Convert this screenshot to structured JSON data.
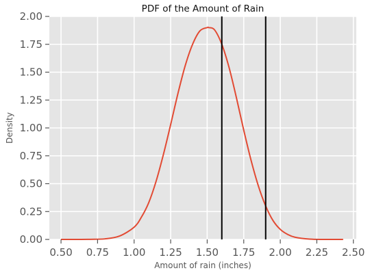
{
  "chart_data": {
    "type": "line",
    "title": "PDF of the Amount of Rain",
    "xlabel": "Amount of rain (inches)",
    "ylabel": "Density",
    "xlim": [
      0.42,
      2.52
    ],
    "ylim": [
      0,
      2.0
    ],
    "x_ticks": [
      "0.50",
      "0.75",
      "1.00",
      "1.25",
      "1.50",
      "1.75",
      "2.00",
      "2.25",
      "2.50"
    ],
    "y_ticks": [
      "0.00",
      "0.25",
      "0.50",
      "0.75",
      "1.00",
      "1.25",
      "1.50",
      "1.75",
      "2.00"
    ],
    "grid": true,
    "series": [
      {
        "color": "#e24a33",
        "x": [
          0.5,
          0.6,
          0.7,
          0.8,
          0.9,
          1.0,
          1.05,
          1.1,
          1.15,
          1.2,
          1.25,
          1.3,
          1.35,
          1.4,
          1.45,
          1.5,
          1.51,
          1.55,
          1.6,
          1.65,
          1.7,
          1.75,
          1.8,
          1.85,
          1.9,
          1.95,
          2.0,
          2.05,
          2.1,
          2.2,
          2.3,
          2.43
        ],
        "y": [
          0.0,
          0.0,
          0.001,
          0.005,
          0.03,
          0.11,
          0.2,
          0.33,
          0.52,
          0.76,
          1.03,
          1.31,
          1.56,
          1.75,
          1.87,
          1.9,
          1.9,
          1.88,
          1.75,
          1.54,
          1.27,
          0.98,
          0.71,
          0.48,
          0.3,
          0.17,
          0.09,
          0.045,
          0.02,
          0.003,
          0.0,
          0.0
        ]
      }
    ],
    "vlines": [
      {
        "x": 1.6,
        "color": "#000000"
      },
      {
        "x": 1.9,
        "color": "#000000"
      }
    ],
    "colors": {
      "background": "#e5e5e5",
      "grid": "#ffffff",
      "curve": "#e24a33",
      "lines": "#000000"
    }
  }
}
